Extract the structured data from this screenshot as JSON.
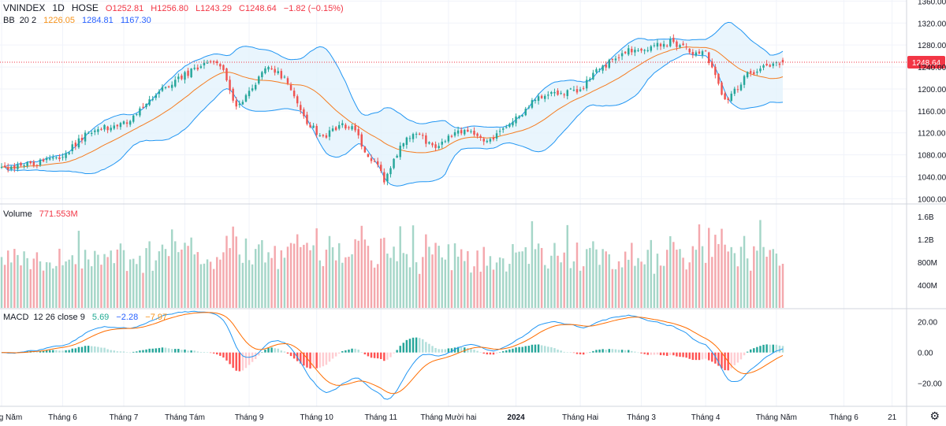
{
  "header": {
    "symbol": "VNINDEX",
    "interval": "1D",
    "exchange": "HOSE",
    "ohlc": {
      "o": "O1252.81",
      "h": "H1256.80",
      "l": "L1243.29",
      "c": "C1248.64",
      "chg": "−1.82 (−0.15%)"
    }
  },
  "bb": {
    "name": "BB",
    "params": "20 2",
    "basis": "1226.05",
    "upper": "1284.81",
    "lower": "1167.30"
  },
  "volume": {
    "name": "Volume",
    "value": "771.553M"
  },
  "macd": {
    "name": "MACD",
    "params": "12 26 close 9",
    "hist": "5.69",
    "macd": "−2.28",
    "signal": "−7.97"
  },
  "last_price_label": "1248.64",
  "colors": {
    "up": "#26a69a",
    "down": "#ef5350",
    "vol_up": "#a5d6c8",
    "vol_down": "#f4a8ad",
    "bb_line": "#2196f3",
    "bb_basis": "#f57c20",
    "bb_fill": "#e3f2fd",
    "macd_line": "#2196f3",
    "signal_line": "#ff6d00",
    "last_price": "#f23645",
    "grid": "#f0f3fa"
  },
  "chart_data": {
    "type": "candlestick",
    "price_axis": {
      "ticks": [
        "1360.00",
        "1320.00",
        "1280.00",
        "1240.00",
        "1200.00",
        "1160.00",
        "1120.00",
        "1080.00",
        "1040.00",
        "1000.00"
      ],
      "range": [
        992,
        1362
      ]
    },
    "volume_axis": {
      "ticks": [
        "1.6B",
        "1.2B",
        "800M",
        "400M"
      ],
      "range": [
        0,
        1.75
      ]
    },
    "macd_axis": {
      "ticks": [
        "20.00",
        "0.00",
        "−20.00"
      ],
      "range": [
        -35,
        28
      ]
    },
    "time_axis": {
      "labels": [
        "Tháng Năm",
        "Tháng 6",
        "Tháng 7",
        "Tháng Tám",
        "Tháng 9",
        "Tháng 10",
        "Tháng 11",
        "Tháng Mười hai",
        "2024",
        "Tháng Hai",
        "Tháng 3",
        "Tháng 4",
        "Tháng Năm",
        "Tháng 6",
        "21"
      ],
      "positions": [
        0,
        19,
        38,
        57,
        77,
        98,
        118,
        139,
        160,
        180,
        199,
        219,
        241,
        262,
        277
      ],
      "total_slots": 282,
      "bars": 244
    },
    "anchors": [
      [
        0,
        1058
      ],
      [
        8,
        1062
      ],
      [
        18,
        1075
      ],
      [
        28,
        1125
      ],
      [
        38,
        1135
      ],
      [
        48,
        1190
      ],
      [
        57,
        1225
      ],
      [
        63,
        1245
      ],
      [
        68,
        1245
      ],
      [
        73,
        1165
      ],
      [
        80,
        1218
      ],
      [
        83,
        1240
      ],
      [
        88,
        1220
      ],
      [
        90,
        1195
      ],
      [
        95,
        1140
      ],
      [
        100,
        1110
      ],
      [
        105,
        1135
      ],
      [
        110,
        1125
      ],
      [
        113,
        1085
      ],
      [
        117,
        1060
      ],
      [
        119,
        1030
      ],
      [
        122,
        1075
      ],
      [
        126,
        1110
      ],
      [
        130,
        1115
      ],
      [
        134,
        1092
      ],
      [
        137,
        1100
      ],
      [
        140,
        1118
      ],
      [
        145,
        1125
      ],
      [
        150,
        1108
      ],
      [
        153,
        1112
      ],
      [
        156,
        1130
      ],
      [
        160,
        1145
      ],
      [
        165,
        1175
      ],
      [
        170,
        1190
      ],
      [
        175,
        1195
      ],
      [
        180,
        1200
      ],
      [
        185,
        1230
      ],
      [
        190,
        1255
      ],
      [
        195,
        1270
      ],
      [
        198,
        1265
      ],
      [
        202,
        1275
      ],
      [
        205,
        1280
      ],
      [
        208,
        1285
      ],
      [
        212,
        1280
      ],
      [
        214,
        1265
      ],
      [
        217,
        1270
      ],
      [
        219,
        1265
      ],
      [
        221,
        1240
      ],
      [
        223,
        1210
      ],
      [
        225,
        1180
      ],
      [
        228,
        1195
      ],
      [
        232,
        1230
      ],
      [
        236,
        1235
      ],
      [
        240,
        1245
      ],
      [
        243,
        1248.64
      ]
    ],
    "bb_params": {
      "length": 20,
      "mult": 2
    },
    "macd_params": {
      "fast": 12,
      "slow": 26,
      "signal": 9
    },
    "last": {
      "close": 1248.64,
      "volume_M": 771.553
    }
  }
}
